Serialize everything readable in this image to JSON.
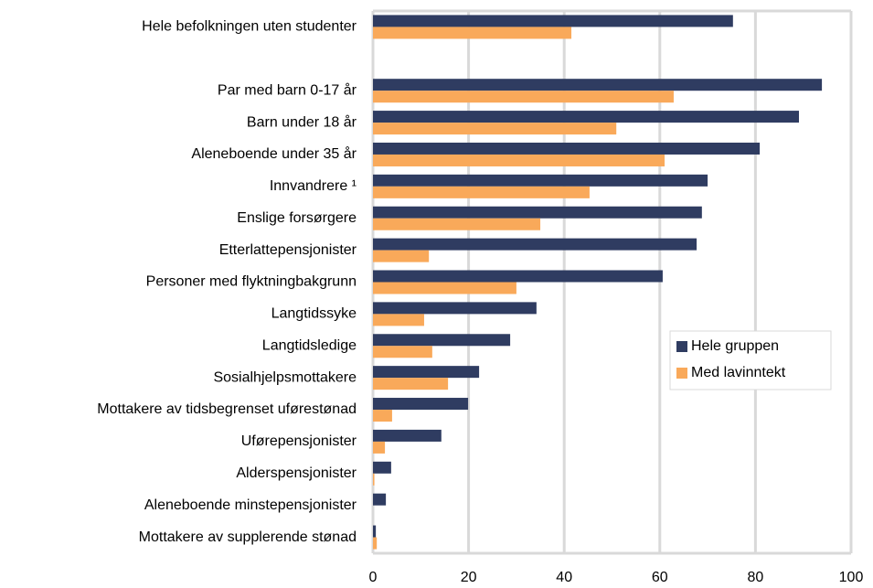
{
  "chart_data": {
    "type": "bar",
    "orientation": "horizontal",
    "categories": [
      "Hele befolkningen uten studenter",
      null,
      "Par med barn 0-17 år",
      "Barn under 18 år",
      "Aleneboende under 35 år",
      "Innvandrere ¹",
      "Enslige forsørgere",
      "Etterlattepensjonister",
      "Personer med flyktningbakgrunn",
      "Langtidssyke",
      "Langtidsledige",
      "Sosialhjelpsmottakere",
      "Mottakere av tidsbegrenset uførestønad",
      "Uførepensjonister",
      "Alderspensjonister",
      "Aleneboende minstepensjonister",
      "Mottakere av supplerende stønad"
    ],
    "series": [
      {
        "name": "Hele gruppen",
        "color": "#2f3c61",
        "values": [
          75.3,
          null,
          93.9,
          89.1,
          80.9,
          70.0,
          68.8,
          67.7,
          60.6,
          34.2,
          28.7,
          22.2,
          19.9,
          14.3,
          3.8,
          2.7,
          0.6
        ]
      },
      {
        "name": "Med lavinntekt",
        "color": "#f9a95a",
        "values": [
          41.5,
          null,
          62.9,
          50.9,
          61.0,
          45.3,
          35.0,
          11.7,
          30.0,
          10.7,
          12.4,
          15.7,
          4.0,
          2.5,
          0.3,
          0,
          0.8
        ]
      }
    ],
    "xlim": [
      0,
      100
    ],
    "xticks": [
      0,
      20,
      40,
      60,
      80,
      100
    ],
    "grid": true,
    "legend": "right"
  }
}
